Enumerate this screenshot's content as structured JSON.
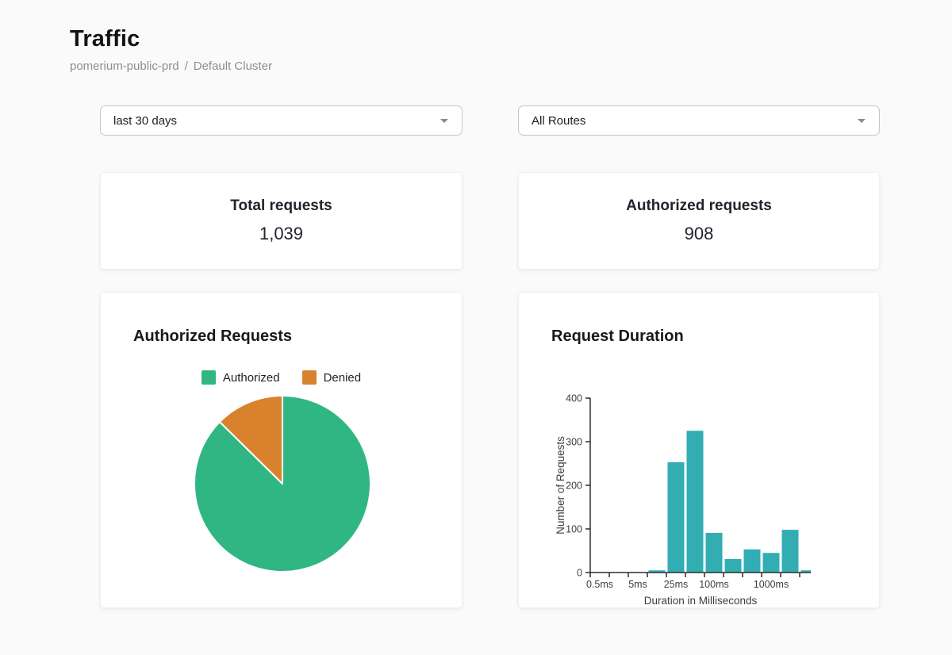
{
  "page": {
    "title": "Traffic",
    "breadcrumb": {
      "cluster": "pomerium-public-prd",
      "separator": "/",
      "section": "Default Cluster"
    }
  },
  "filters": {
    "time_range": {
      "value": "last 30 days"
    },
    "routes": {
      "value": "All Routes"
    }
  },
  "icons": {
    "dropdown_arrow": "triangle-down"
  },
  "stats": [
    {
      "label": "Total requests",
      "value": "1,039"
    },
    {
      "label": "Authorized requests",
      "value": "908"
    }
  ],
  "colors": {
    "authorized_green": "#30b683",
    "denied_orange": "#d8822e",
    "histogram_teal": "#32adb2",
    "axis": "#2e2e2e",
    "axis_text": "#3d3d3d"
  },
  "chart_data": [
    {
      "type": "pie",
      "title": "Authorized Requests",
      "labels": [
        "Authorized",
        "Denied"
      ],
      "values": [
        908,
        131
      ],
      "colors": [
        "#30b683",
        "#d8822e"
      ],
      "legend_position": "top",
      "start": "12-o-clock, denied slice counter-clockwise"
    },
    {
      "type": "bar",
      "title": "Request Duration",
      "xlabel": "Duration in Milliseconds",
      "ylabel": "Number of Requests",
      "ylim": [
        0,
        400
      ],
      "yticks": [
        0,
        100,
        200,
        300,
        400
      ],
      "values": [
        0,
        0,
        0,
        5,
        253,
        325,
        91,
        31,
        53,
        45,
        98,
        5
      ],
      "xticks": [
        {
          "label": "0.5ms",
          "bucket": 0
        },
        {
          "label": "5ms",
          "bucket": 2
        },
        {
          "label": "25ms",
          "bucket": 4
        },
        {
          "label": "100ms",
          "bucket": 6
        },
        {
          "label": "1000ms",
          "bucket": 9
        }
      ],
      "bar_color": "#32adb2",
      "grid": false,
      "x_scale": "log-buckets"
    }
  ]
}
